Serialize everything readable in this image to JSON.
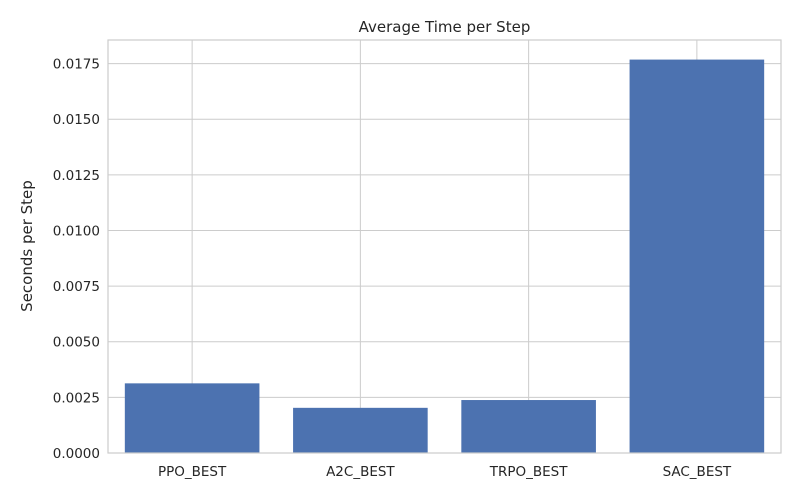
{
  "chart_data": {
    "type": "bar",
    "title": "Average Time per Step",
    "xlabel": "",
    "ylabel": "Seconds per Step",
    "categories": [
      "PPO_BEST",
      "A2C_BEST",
      "TRPO_BEST",
      "SAC_BEST"
    ],
    "values": [
      0.00313,
      0.00203,
      0.00238,
      0.01768
    ],
    "ylim": [
      0,
      0.01856
    ],
    "yticks": [
      0.0,
      0.0025,
      0.005,
      0.0075,
      0.01,
      0.0125,
      0.015,
      0.0175
    ],
    "ytick_labels": [
      "0.0000",
      "0.0025",
      "0.0050",
      "0.0075",
      "0.0100",
      "0.0125",
      "0.0150",
      "0.0175"
    ],
    "grid": true,
    "bar_color": "#4c72b0",
    "grid_color": "#cccccc",
    "axes_edge_color": "#cccccc",
    "background": "#ffffff"
  }
}
